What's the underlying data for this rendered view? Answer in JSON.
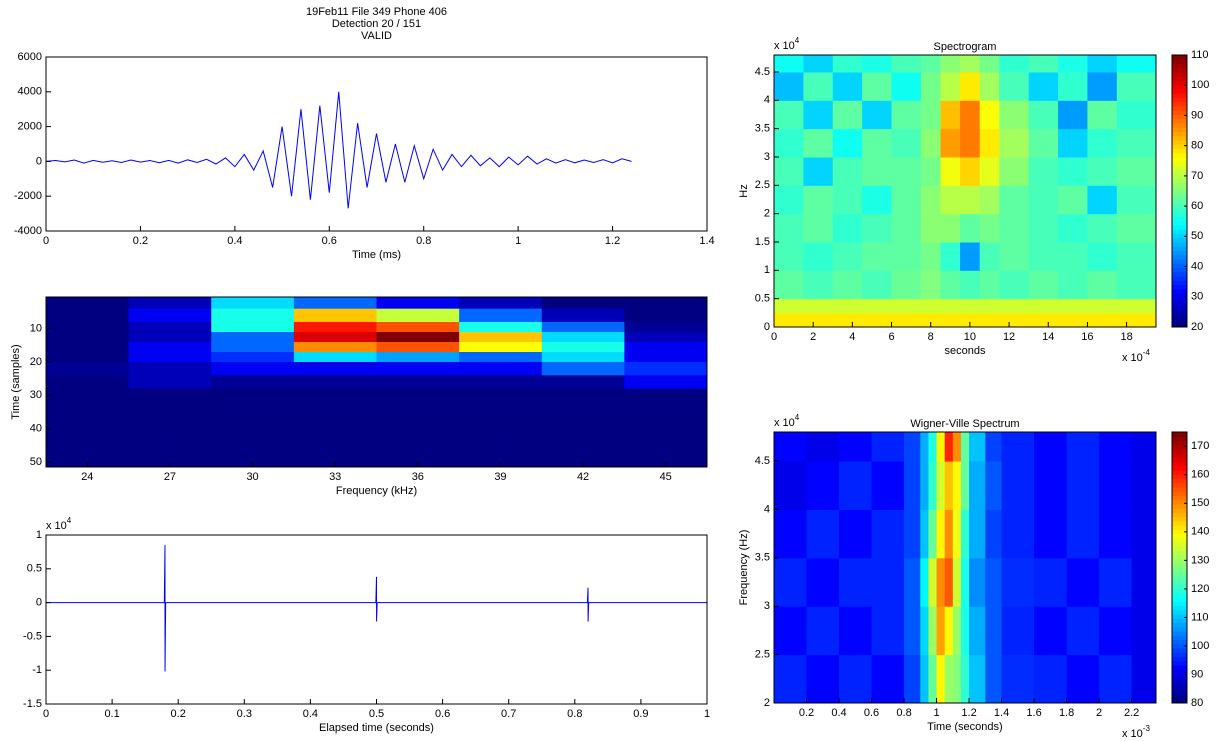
{
  "chart_data": [
    {
      "type": "line",
      "title": [
        "19Feb11 File 349 Phone 406",
        "Detection 20 / 151",
        "VALID"
      ],
      "x_label": "Time (ms)",
      "color": "#0000ff",
      "xlim": [
        0,
        1.4
      ],
      "xticks": [
        0,
        0.2,
        0.4,
        0.6,
        0.8,
        1,
        1.2,
        1.4
      ],
      "ylim": [
        -4000,
        6000
      ],
      "yticks": [
        -4000,
        -2000,
        0,
        2000,
        4000,
        6000
      ],
      "x": [
        0,
        0.02,
        0.04,
        0.06,
        0.08,
        0.1,
        0.12,
        0.14,
        0.16,
        0.18,
        0.2,
        0.22,
        0.24,
        0.26,
        0.28,
        0.3,
        0.32,
        0.34,
        0.36,
        0.38,
        0.4,
        0.42,
        0.44,
        0.46,
        0.48,
        0.5,
        0.52,
        0.54,
        0.56,
        0.58,
        0.6,
        0.62,
        0.64,
        0.66,
        0.68,
        0.7,
        0.72,
        0.74,
        0.76,
        0.78,
        0.8,
        0.82,
        0.84,
        0.86,
        0.88,
        0.9,
        0.92,
        0.94,
        0.96,
        0.98,
        1,
        1.02,
        1.04,
        1.06,
        1.08,
        1.1,
        1.12,
        1.14,
        1.16,
        1.18,
        1.2,
        1.22,
        1.24
      ],
      "values": [
        0,
        50,
        -30,
        80,
        -100,
        60,
        -50,
        40,
        -60,
        80,
        -40,
        50,
        -80,
        60,
        -100,
        90,
        -60,
        120,
        -150,
        200,
        -300,
        400,
        -500,
        600,
        -1500,
        2000,
        -2000,
        3000,
        -2200,
        3200,
        -1800,
        4000,
        -2700,
        2200,
        -1500,
        1600,
        -1200,
        1000,
        -1200,
        900,
        -1000,
        700,
        -500,
        400,
        -300,
        350,
        -250,
        200,
        -300,
        250,
        -200,
        300,
        -150,
        150,
        -100,
        100,
        -80,
        80,
        -60,
        100,
        -80,
        150,
        0
      ]
    },
    {
      "type": "heatmap",
      "x_label": "Frequency (kHz)",
      "y_label": "Time (samples)",
      "categories": [
        "24",
        "27",
        "30",
        "33",
        "36",
        "39",
        "42",
        "45"
      ],
      "ylim": [
        0.5,
        51.5
      ],
      "y_reverse": true,
      "yticks": [
        10,
        20,
        30,
        40,
        50
      ],
      "ybins": [
        0.5,
        4,
        8,
        11,
        14,
        17,
        20,
        24,
        28,
        51.5
      ],
      "values": [
        [
          0.1,
          0.15,
          0.4,
          0.3,
          0.2,
          0.15,
          0.1,
          0.1
        ],
        [
          0.1,
          0.2,
          0.45,
          0.7,
          0.6,
          0.3,
          0.15,
          0.1
        ],
        [
          0.1,
          0.15,
          0.45,
          0.85,
          0.8,
          0.45,
          0.3,
          0.12
        ],
        [
          0.1,
          0.15,
          0.3,
          0.9,
          0.98,
          0.7,
          0.4,
          0.15
        ],
        [
          0.1,
          0.2,
          0.3,
          0.75,
          0.8,
          0.65,
          0.45,
          0.2
        ],
        [
          0.1,
          0.2,
          0.25,
          0.4,
          0.35,
          0.3,
          0.4,
          0.2
        ],
        [
          0.12,
          0.15,
          0.2,
          0.2,
          0.2,
          0.2,
          0.3,
          0.25
        ],
        [
          0.1,
          0.15,
          0.12,
          0.12,
          0.12,
          0.12,
          0.12,
          0.2
        ],
        [
          0.1,
          0.1,
          0.1,
          0.1,
          0.1,
          0.1,
          0.1,
          0.1
        ]
      ]
    },
    {
      "type": "line",
      "x_label": "Elapsed time (seconds)",
      "color": "#0000ff",
      "y_exponent": {
        "base": "x 10",
        "power": "4"
      },
      "xlim": [
        0,
        1
      ],
      "xticks": [
        0,
        0.1,
        0.2,
        0.3,
        0.4,
        0.5,
        0.6,
        0.7,
        0.8,
        0.9,
        1
      ],
      "ylim": [
        -1.5,
        1
      ],
      "yticks": [
        -1.5,
        -1,
        -0.5,
        0,
        0.5,
        1
      ],
      "x": [
        0,
        0.179,
        0.18,
        0.1801,
        0.181,
        0.499,
        0.5,
        0.5001,
        0.501,
        0.819,
        0.82,
        0.8201,
        0.821,
        1
      ],
      "values": [
        0,
        0,
        0.85,
        -1.02,
        0,
        0,
        0.38,
        -0.28,
        0,
        0,
        0.22,
        -0.28,
        0,
        0
      ]
    },
    {
      "type": "heatmap",
      "title": "Spectrogram",
      "x_label": "seconds",
      "y_label": "Hz",
      "x_exponent": {
        "base": "x 10",
        "power": "-4"
      },
      "y_exponent": {
        "base": "x 10",
        "power": "4"
      },
      "xlim": [
        0,
        19.5
      ],
      "xticks": [
        0,
        2,
        4,
        6,
        8,
        10,
        12,
        14,
        16,
        18
      ],
      "ylim": [
        0,
        4.8
      ],
      "yticks": [
        0,
        0.5,
        1,
        1.5,
        2,
        2.5,
        3,
        3.5,
        4,
        4.5
      ],
      "clim": [
        20,
        110
      ],
      "colorbar_ticks": [
        20,
        30,
        40,
        50,
        60,
        70,
        80,
        90,
        100,
        110
      ],
      "xbins": [
        0,
        1.5,
        3,
        4.5,
        6,
        7.5,
        8.5,
        9.5,
        10.5,
        11.5,
        13,
        14.5,
        16,
        17.5,
        19.5
      ],
      "ybins": [
        0,
        0.25,
        0.5,
        1,
        1.5,
        2,
        2.5,
        3,
        3.5,
        4,
        4.5,
        4.8
      ],
      "values": [
        [
          78,
          78,
          78,
          78,
          78,
          78,
          78,
          78,
          78,
          78,
          78,
          78,
          78,
          78
        ],
        [
          72,
          72,
          72,
          72,
          72,
          72,
          72,
          72,
          72,
          72,
          72,
          72,
          72,
          72
        ],
        [
          62,
          60,
          62,
          60,
          63,
          65,
          62,
          60,
          62,
          60,
          62,
          60,
          62,
          60
        ],
        [
          60,
          58,
          60,
          62,
          62,
          64,
          58,
          45,
          60,
          62,
          60,
          60,
          58,
          60
        ],
        [
          60,
          62,
          58,
          60,
          62,
          66,
          66,
          62,
          64,
          62,
          60,
          58,
          60,
          62
        ],
        [
          58,
          62,
          60,
          56,
          62,
          66,
          70,
          70,
          68,
          62,
          60,
          62,
          50,
          60
        ],
        [
          60,
          50,
          60,
          62,
          62,
          64,
          75,
          80,
          74,
          66,
          60,
          58,
          60,
          62
        ],
        [
          58,
          62,
          55,
          62,
          60,
          66,
          85,
          88,
          78,
          68,
          62,
          50,
          58,
          60
        ],
        [
          60,
          50,
          62,
          50,
          62,
          64,
          82,
          88,
          76,
          66,
          60,
          45,
          62,
          58
        ],
        [
          48,
          60,
          50,
          62,
          55,
          64,
          70,
          78,
          68,
          60,
          50,
          58,
          45,
          60
        ],
        [
          55,
          50,
          58,
          56,
          60,
          62,
          66,
          68,
          64,
          58,
          60,
          56,
          50,
          55
        ]
      ]
    },
    {
      "type": "heatmap",
      "title": "Wigner-Ville Spectrum",
      "x_label": "Time (seconds)",
      "y_label": "Frequency (Hz)",
      "x_exponent": {
        "base": "x 10",
        "power": "-3"
      },
      "y_exponent": {
        "base": "x 10",
        "power": "4"
      },
      "xlim": [
        0,
        2.35
      ],
      "xticks": [
        0.2,
        0.4,
        0.6,
        0.8,
        1,
        1.2,
        1.4,
        1.6,
        1.8,
        2,
        2.2
      ],
      "ylim": [
        2,
        4.8
      ],
      "yticks": [
        2,
        2.5,
        3,
        3.5,
        4,
        4.5
      ],
      "clim": [
        80,
        175
      ],
      "colorbar_ticks": [
        80,
        90,
        100,
        110,
        120,
        130,
        140,
        150,
        160,
        170
      ],
      "xbins": [
        0,
        0.2,
        0.4,
        0.6,
        0.8,
        0.9,
        0.95,
        1,
        1.05,
        1.1,
        1.15,
        1.2,
        1.3,
        1.4,
        1.6,
        1.8,
        2,
        2.2,
        2.35
      ],
      "ybins": [
        2,
        2.5,
        3,
        3.5,
        4,
        4.5,
        4.8
      ],
      "values": [
        [
          95,
          92,
          95,
          92,
          98,
          110,
          125,
          140,
          130,
          128,
          120,
          110,
          100,
          96,
          95,
          92,
          95,
          90
        ],
        [
          92,
          95,
          92,
          95,
          100,
          112,
          130,
          148,
          140,
          130,
          118,
          108,
          100,
          95,
          92,
          95,
          92,
          90
        ],
        [
          95,
          92,
          95,
          95,
          100,
          115,
          135,
          150,
          155,
          135,
          118,
          105,
          100,
          96,
          95,
          92,
          95,
          90
        ],
        [
          92,
          95,
          92,
          95,
          98,
          110,
          125,
          140,
          150,
          138,
          120,
          108,
          98,
          95,
          92,
          95,
          92,
          90
        ],
        [
          90,
          92,
          95,
          92,
          98,
          108,
          120,
          135,
          145,
          140,
          125,
          108,
          100,
          95,
          92,
          95,
          92,
          90
        ],
        [
          92,
          90,
          92,
          95,
          98,
          108,
          118,
          140,
          160,
          150,
          125,
          110,
          98,
          95,
          92,
          95,
          92,
          90
        ]
      ]
    }
  ]
}
